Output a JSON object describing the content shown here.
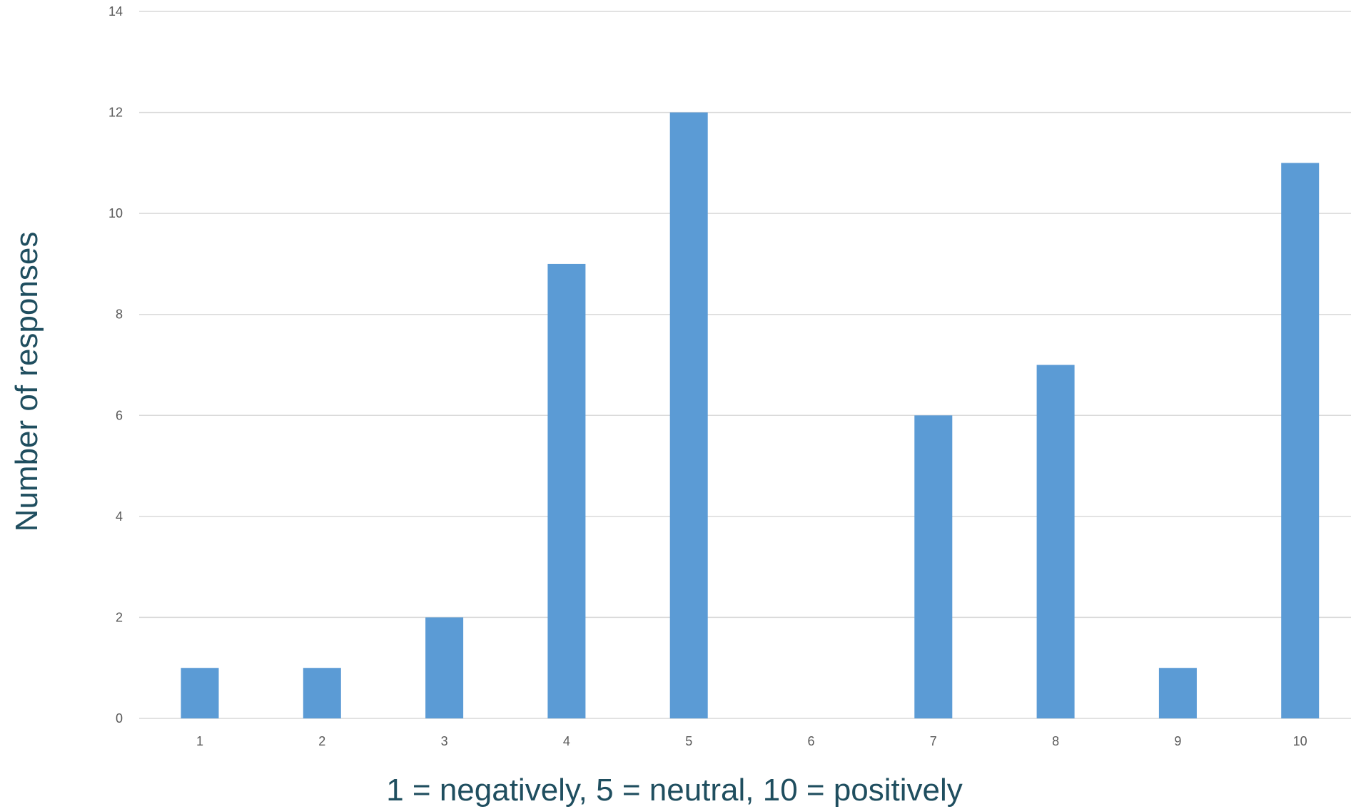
{
  "chart_data": {
    "type": "bar",
    "categories": [
      "1",
      "2",
      "3",
      "4",
      "5",
      "6",
      "7",
      "8",
      "9",
      "10"
    ],
    "values": [
      1,
      1,
      2,
      9,
      12,
      0,
      6,
      7,
      1,
      11
    ],
    "title": "",
    "xlabel": "1 = negatively, 5 = neutral, 10 = positively",
    "ylabel": "Number of responses",
    "ylim": [
      0,
      14
    ],
    "yticks": [
      0,
      2,
      4,
      6,
      8,
      10,
      12,
      14
    ],
    "grid": true,
    "legend": "none",
    "bar_color": "#5b9bd5",
    "grid_color": "#d9d9d9",
    "axis_title_color": "#1f4e5f"
  }
}
